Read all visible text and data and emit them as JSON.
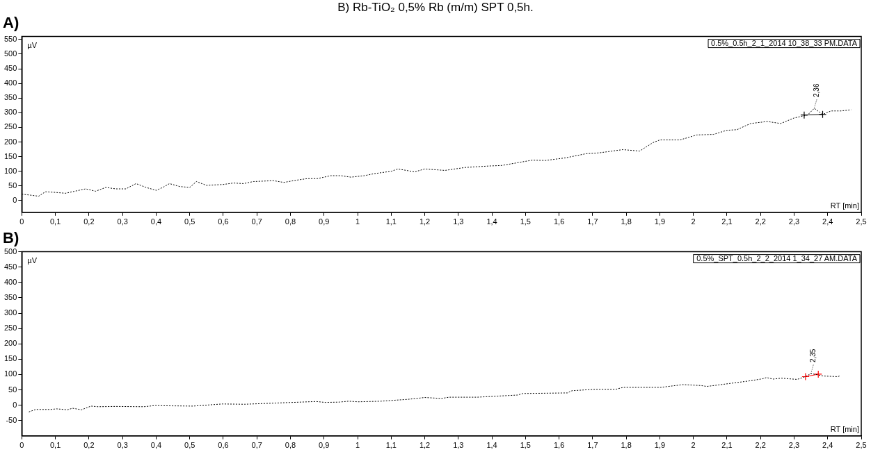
{
  "chart_data": [
    {
      "type": "line",
      "title": "B) Rb-TiO₂ 0,5% Rb (m/m) SPT 0,5h.",
      "subtitle": "A)",
      "xlabel": "RT [min]",
      "ylabel": "µV",
      "grid": false,
      "legend": false,
      "line_style": "dashed",
      "marker": "none",
      "xlim": [
        0,
        2.5
      ],
      "ylim": [
        -40,
        560
      ],
      "xticks": [
        0,
        {
          "value": 0.1,
          "label": "0,1"
        },
        {
          "value": 0.2,
          "label": "0,2"
        },
        {
          "value": 0.3,
          "label": "0,3"
        },
        {
          "value": 0.4,
          "label": "0,4"
        },
        {
          "value": 0.5,
          "label": "0,5"
        },
        {
          "value": 0.6,
          "label": "0,6"
        },
        {
          "value": 0.7,
          "label": "0,7"
        },
        {
          "value": 0.8,
          "label": "0,8"
        },
        {
          "value": 0.9,
          "label": "0,9"
        },
        1,
        {
          "value": 1.1,
          "label": "1,1"
        },
        {
          "value": 1.2,
          "label": "1,2"
        },
        {
          "value": 1.3,
          "label": "1,3"
        },
        {
          "value": 1.4,
          "label": "1,4"
        },
        {
          "value": 1.5,
          "label": "1,5"
        },
        {
          "value": 1.6,
          "label": "1,6"
        },
        {
          "value": 1.7,
          "label": "1,7"
        },
        {
          "value": 1.8,
          "label": "1,8"
        },
        {
          "value": 1.9,
          "label": "1,9"
        },
        2,
        {
          "value": 2.1,
          "label": "2,1"
        },
        {
          "value": 2.2,
          "label": "2,2"
        },
        {
          "value": 2.3,
          "label": "2,3"
        },
        {
          "value": 2.4,
          "label": "2,4"
        },
        {
          "value": 2.5,
          "label": "2,5"
        }
      ],
      "yticks": [
        0,
        50,
        100,
        150,
        200,
        250,
        300,
        350,
        400,
        450,
        500,
        550
      ],
      "series": [
        {
          "color": "#000000",
          "x": [
            0,
            0.03,
            0.05,
            0.07,
            0.1,
            0.13,
            0.15,
            0.19,
            0.22,
            0.25,
            0.28,
            0.31,
            0.34,
            0.37,
            0.4,
            0.42,
            0.44,
            0.47,
            0.5,
            0.52,
            0.55,
            0.6,
            0.63,
            0.66,
            0.69,
            0.75,
            0.78,
            0.82,
            0.85,
            0.88,
            0.92,
            0.95,
            0.98,
            1.02,
            1.05,
            1.1,
            1.12,
            1.17,
            1.2,
            1.26,
            1.32,
            1.39,
            1.43,
            1.49,
            1.52,
            1.56,
            1.62,
            1.68,
            1.72,
            1.79,
            1.84,
            1.88,
            1.9,
            1.96,
            2.01,
            2.06,
            2.1,
            2.13,
            2.17,
            2.22,
            2.26,
            2.3,
            2.34,
            2.36,
            2.385,
            2.41,
            2.44,
            2.47
          ],
          "values": [
            22,
            18,
            15,
            30,
            28,
            25,
            30,
            40,
            32,
            45,
            40,
            40,
            58,
            45,
            35,
            45,
            58,
            48,
            45,
            65,
            52,
            55,
            60,
            58,
            65,
            68,
            62,
            70,
            75,
            75,
            85,
            85,
            80,
            85,
            92,
            100,
            108,
            98,
            108,
            103,
            113,
            118,
            120,
            132,
            138,
            137,
            146,
            160,
            163,
            174,
            169,
            198,
            207,
            207,
            224,
            226,
            240,
            242,
            263,
            270,
            263,
            282,
            292,
            315,
            294,
            306,
            306,
            310
          ]
        },
        {
          "color": "#000000",
          "marker": "cross",
          "line_style": "solid",
          "x": [
            2.33,
            2.385
          ],
          "values": [
            292,
            294
          ]
        }
      ],
      "annotations": [
        "0.5%_0.5h_2_1_2014 10_38_33 PM.DATA",
        {
          "text": "2,36",
          "x": 2.36,
          "y": 315
        }
      ]
    },
    {
      "type": "line",
      "subtitle": "B)",
      "xlabel": "RT [min]",
      "ylabel": "µV",
      "grid": false,
      "legend": false,
      "line_style": "dashed",
      "marker": "none",
      "xlim": [
        0,
        2.5
      ],
      "ylim": [
        -100,
        500
      ],
      "xticks": [
        0,
        {
          "value": 0.1,
          "label": "0,1"
        },
        {
          "value": 0.2,
          "label": "0,2"
        },
        {
          "value": 0.3,
          "label": "0,3"
        },
        {
          "value": 0.4,
          "label": "0,4"
        },
        {
          "value": 0.5,
          "label": "0,5"
        },
        {
          "value": 0.6,
          "label": "0,6"
        },
        {
          "value": 0.7,
          "label": "0,7"
        },
        {
          "value": 0.8,
          "label": "0,8"
        },
        {
          "value": 0.9,
          "label": "0,9"
        },
        1,
        {
          "value": 1.1,
          "label": "1,1"
        },
        {
          "value": 1.2,
          "label": "1,2"
        },
        {
          "value": 1.3,
          "label": "1,3"
        },
        {
          "value": 1.4,
          "label": "1,4"
        },
        {
          "value": 1.5,
          "label": "1,5"
        },
        {
          "value": 1.6,
          "label": "1,6"
        },
        {
          "value": 1.7,
          "label": "1,7"
        },
        {
          "value": 1.8,
          "label": "1,8"
        },
        {
          "value": 1.9,
          "label": "1,9"
        },
        2,
        {
          "value": 2.1,
          "label": "2,1"
        },
        {
          "value": 2.2,
          "label": "2,2"
        },
        {
          "value": 2.3,
          "label": "2,3"
        },
        {
          "value": 2.4,
          "label": "2,4"
        },
        {
          "value": 2.5,
          "label": "2,5"
        }
      ],
      "yticks": [
        -50,
        0,
        50,
        100,
        150,
        200,
        250,
        300,
        350,
        400,
        450,
        500
      ],
      "series": [
        {
          "color": "#000000",
          "x": [
            0.021,
            0.041,
            0.086,
            0.104,
            0.136,
            0.151,
            0.178,
            0.206,
            0.227,
            0.278,
            0.363,
            0.381,
            0.398,
            0.427,
            0.51,
            0.597,
            0.663,
            0.877,
            0.903,
            0.945,
            0.973,
            1.002,
            1.037,
            1.07,
            1.149,
            1.176,
            1.2,
            1.25,
            1.273,
            1.306,
            1.356,
            1.476,
            1.492,
            1.625,
            1.638,
            1.708,
            1.77,
            1.791,
            1.903,
            1.969,
            2.023,
            2.04,
            2.166,
            2.206,
            2.218,
            2.237,
            2.262,
            2.309,
            2.334,
            2.35,
            2.388,
            2.43,
            2.438
          ],
          "values": [
            -22,
            -14,
            -14,
            -12,
            -15,
            -10,
            -15,
            -3,
            -5,
            -4,
            -5,
            -3,
            -1,
            -2,
            -3,
            4,
            3,
            12,
            9,
            10,
            13,
            11,
            12,
            13,
            19,
            22,
            25,
            22,
            26,
            26,
            26,
            33,
            38,
            40,
            47,
            52,
            52,
            58,
            58,
            67,
            64,
            61,
            79,
            86,
            90,
            85,
            88,
            84,
            93,
            103,
            95,
            93,
            96
          ]
        },
        {
          "color": "#ff0000",
          "marker": "cross",
          "line_style": "solid",
          "x": [
            2.334,
            2.372
          ],
          "values": [
            93,
            101
          ]
        }
      ],
      "annotations": [
        "0.5%_SPT_0.5h_2_2_2014 1_34_27 AM.DATA",
        {
          "text": "2,35",
          "x": 2.35,
          "y": 103
        }
      ]
    }
  ]
}
